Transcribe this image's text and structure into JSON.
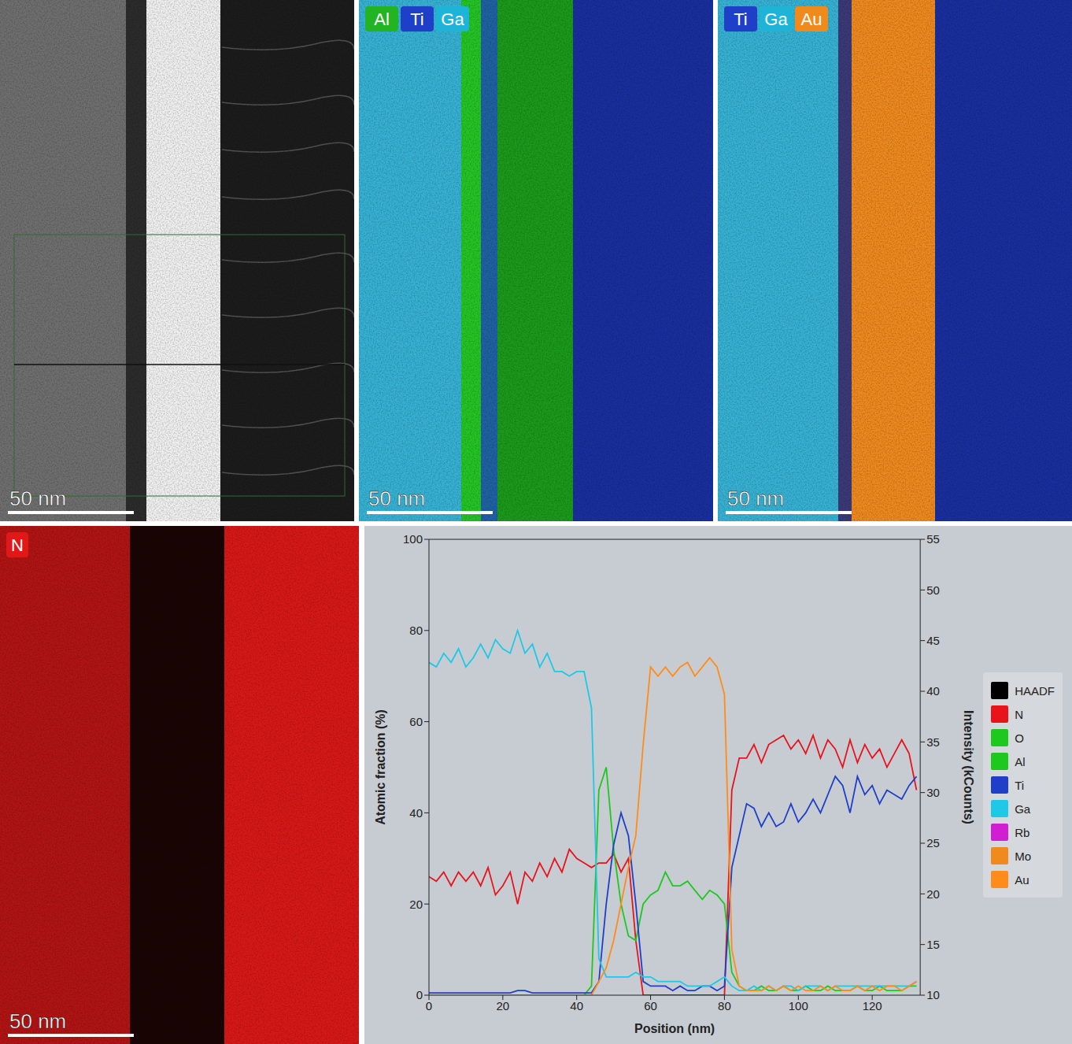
{
  "images": [
    {
      "labels": [],
      "colors": [],
      "scale_bar": "50 nm"
    },
    {
      "labels": [
        "Al",
        "Ti",
        "Ga"
      ],
      "colors": [
        "#22b422",
        "#1f3fc9",
        "#1eb4d8"
      ],
      "scale_bar": "50 nm"
    },
    {
      "labels": [
        "Ti",
        "Ga",
        "Au"
      ],
      "colors": [
        "#1f3fc9",
        "#1eb4d8",
        "#f08a1c"
      ],
      "scale_bar": "50 nm"
    },
    {
      "labels": [
        "N"
      ],
      "colors": [
        "#e01818"
      ],
      "scale_bar": "50 nm"
    }
  ],
  "chart_data": {
    "type": "line",
    "x_label": "Position (nm)",
    "y_label": "Atomic fraction (%)",
    "y2_label": "Intensity (kCounts)",
    "xlim": [
      0,
      133
    ],
    "xticks": [
      0,
      20,
      40,
      60,
      80,
      100,
      120
    ],
    "ylim": [
      0,
      100
    ],
    "yticks": [
      0,
      20,
      40,
      60,
      80,
      100
    ],
    "y2lim": [
      10,
      55
    ],
    "y2ticks": [
      10,
      15,
      20,
      25,
      30,
      35,
      40,
      45,
      50,
      55
    ],
    "legend": "right",
    "x": [
      0,
      2,
      4,
      6,
      8,
      10,
      12,
      14,
      16,
      18,
      20,
      22,
      24,
      26,
      28,
      30,
      32,
      34,
      36,
      38,
      40,
      42,
      44,
      46,
      48,
      50,
      52,
      54,
      56,
      58,
      60,
      62,
      64,
      66,
      68,
      70,
      72,
      74,
      76,
      78,
      80,
      82,
      84,
      86,
      88,
      90,
      92,
      94,
      96,
      98,
      100,
      102,
      104,
      106,
      108,
      110,
      112,
      114,
      116,
      118,
      120,
      122,
      124,
      126,
      128,
      130,
      132
    ],
    "series": [
      {
        "name": "HAADF",
        "color": "#000000",
        "axis": "y2",
        "values": [
          null,
          null,
          null,
          null,
          null,
          null,
          null,
          null,
          null,
          null,
          null,
          null,
          null,
          null,
          null,
          null,
          null,
          null,
          null,
          null,
          null,
          null,
          null,
          null,
          null,
          null,
          null,
          null,
          null,
          null,
          null,
          null,
          null,
          null,
          null,
          null,
          null,
          null,
          null,
          null,
          null,
          null,
          null,
          null,
          null,
          null,
          null,
          null,
          null,
          null,
          null,
          null,
          null,
          null,
          null,
          null,
          null,
          null,
          null,
          null,
          null,
          null,
          null,
          null,
          null,
          null,
          null
        ]
      },
      {
        "name": "N",
        "color": "#e8131b",
        "values": [
          26,
          25,
          27,
          24,
          27,
          25,
          27,
          24,
          28,
          22,
          24,
          27,
          20,
          27,
          25,
          29,
          26,
          30,
          27,
          32,
          30,
          29,
          28,
          29,
          29,
          31,
          27,
          30,
          12,
          0,
          0,
          0,
          0,
          0,
          0,
          0,
          0,
          0,
          0,
          0,
          0,
          45,
          52,
          52,
          55,
          51,
          55,
          56,
          57,
          54,
          56,
          53,
          57,
          52,
          56,
          54,
          50,
          56,
          51,
          55,
          52,
          54,
          50,
          53,
          56,
          53,
          45
        ]
      },
      {
        "name": "O",
        "color": "#1ec81e",
        "values": [
          null,
          null,
          null,
          null,
          null,
          null,
          null,
          null,
          null,
          null,
          null,
          null,
          null,
          null,
          null,
          null,
          null,
          null,
          null,
          null,
          null,
          null,
          null,
          null,
          null,
          null,
          null,
          null,
          null,
          null,
          null,
          null,
          null,
          null,
          null,
          null,
          null,
          null,
          null,
          null,
          null,
          null,
          null,
          null,
          null,
          null,
          null,
          null,
          null,
          null,
          null,
          null,
          null,
          null,
          null,
          null,
          null,
          null,
          null,
          null,
          null,
          null,
          null,
          null,
          null,
          null,
          null
        ]
      },
      {
        "name": "Al",
        "color": "#1ec81e",
        "values": [
          0,
          0,
          0,
          0,
          0,
          0,
          0,
          0,
          0,
          0,
          0,
          0,
          0,
          0,
          0,
          0,
          0,
          0,
          0,
          0,
          0,
          0,
          2,
          45,
          50,
          32,
          20,
          13,
          12,
          20,
          22,
          23,
          27,
          24,
          24,
          25,
          23,
          21,
          23,
          22,
          20,
          5,
          2,
          1,
          1,
          2,
          1,
          1,
          2,
          1,
          1,
          2,
          1,
          1,
          2,
          1,
          1,
          1,
          2,
          1,
          1,
          2,
          1,
          1,
          1,
          2,
          2
        ]
      },
      {
        "name": "Ti",
        "color": "#1f3fc9",
        "values": [
          0.5,
          0.5,
          0.5,
          0.5,
          0.5,
          0.5,
          0.5,
          0.5,
          0.5,
          0.5,
          0.5,
          0.5,
          1,
          1,
          0.5,
          0.5,
          0.5,
          0.5,
          0.5,
          0.5,
          0.5,
          0.5,
          0.5,
          3,
          20,
          33,
          40,
          35,
          20,
          3,
          2,
          2,
          2,
          1,
          2,
          1,
          1,
          2,
          2,
          1,
          2,
          28,
          35,
          42,
          41,
          37,
          40,
          37,
          38,
          42,
          38,
          40,
          43,
          40,
          44,
          48,
          46,
          40,
          48,
          44,
          46,
          42,
          45,
          44,
          43,
          46,
          48
        ]
      },
      {
        "name": "Ga",
        "color": "#1ec8e6",
        "values": [
          73,
          72,
          75,
          73,
          76,
          72,
          74,
          77,
          74,
          78,
          76,
          75,
          80,
          75,
          77,
          72,
          75,
          71,
          71,
          70,
          71,
          71,
          63,
          8,
          4,
          4,
          4,
          4,
          5,
          4,
          4,
          3,
          3,
          3,
          3,
          2,
          2,
          2,
          2,
          3,
          4,
          2,
          1,
          1,
          2,
          1,
          2,
          1,
          2,
          2,
          1,
          2,
          2,
          2,
          1,
          2,
          2,
          2,
          2,
          2,
          2,
          2,
          2,
          2,
          2,
          2,
          3
        ]
      },
      {
        "name": "Rb",
        "color": "#d21ed2",
        "values": [
          null,
          null,
          null,
          null,
          null,
          null,
          null,
          null,
          null,
          null,
          null,
          null,
          null,
          null,
          null,
          null,
          null,
          null,
          null,
          null,
          null,
          null,
          null,
          null,
          null,
          null,
          null,
          null,
          null,
          null,
          null,
          null,
          null,
          null,
          null,
          null,
          null,
          null,
          null,
          null,
          null,
          null,
          null,
          null,
          null,
          null,
          null,
          null,
          null,
          null,
          null,
          null,
          null,
          null,
          null,
          null,
          null,
          null,
          null,
          null,
          null,
          null,
          null,
          null,
          null,
          null,
          null
        ]
      },
      {
        "name": "Mo",
        "color": "#f08a1c",
        "values": [
          null,
          null,
          null,
          null,
          null,
          null,
          null,
          null,
          null,
          null,
          null,
          null,
          null,
          null,
          null,
          null,
          null,
          null,
          null,
          null,
          null,
          null,
          null,
          null,
          null,
          null,
          null,
          null,
          null,
          null,
          null,
          null,
          null,
          null,
          null,
          null,
          null,
          null,
          null,
          null,
          null,
          null,
          null,
          null,
          null,
          null,
          null,
          null,
          null,
          null,
          null,
          null,
          null,
          null,
          null,
          null,
          null,
          null,
          null,
          null,
          null,
          null,
          null,
          null,
          null,
          null,
          null
        ]
      },
      {
        "name": "Au",
        "color": "#ff8c1a",
        "values": [
          0,
          0,
          0,
          0,
          0,
          0,
          0,
          0,
          0,
          0,
          0,
          0,
          0,
          0,
          0,
          0,
          0,
          0,
          0,
          0,
          0,
          0,
          0,
          3,
          6,
          12,
          20,
          28,
          35,
          55,
          72,
          70,
          72,
          70,
          72,
          73,
          70,
          72,
          74,
          72,
          66,
          10,
          2,
          1,
          1,
          1,
          2,
          1,
          2,
          1,
          2,
          1,
          1,
          2,
          1,
          2,
          1,
          1,
          2,
          1,
          2,
          1,
          2,
          2,
          1,
          2,
          3
        ]
      }
    ]
  }
}
